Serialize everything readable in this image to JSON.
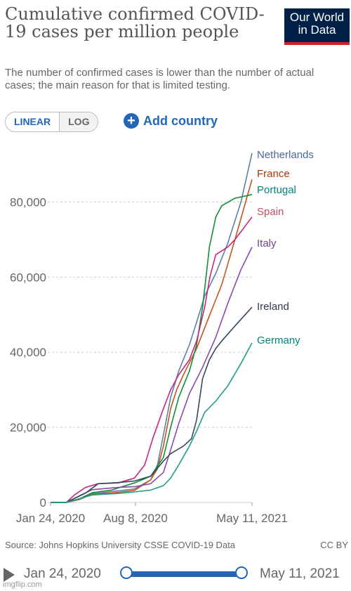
{
  "header": {
    "title": "Cumulative confirmed COVID-19 cases per million people",
    "subtitle": "The number of confirmed cases is lower than the number of actual cases; the main reason for that is limited testing.",
    "logo_line1": "Our World",
    "logo_line2": "in Data"
  },
  "controls": {
    "linear_label": "LINEAR",
    "log_label": "LOG",
    "add_country_label": "Add country"
  },
  "footer": {
    "source": "Source: Johns Hopkins University CSSE COVID-19 Data",
    "license": "CC BY"
  },
  "timeline": {
    "start_label": "Jan 24, 2020",
    "end_label": "May 11, 2021"
  },
  "watermark": "imgflip.com",
  "chart_data": {
    "type": "line",
    "x_start": "2020-01-24",
    "x_end": "2021-05-11",
    "x_ticks": [
      "Jan 24, 2020",
      "Aug 8, 2020",
      "May 11, 2021"
    ],
    "y_ticks": [
      "0",
      "20,000",
      "40,000",
      "60,000",
      "80,000"
    ],
    "y_tick_values": [
      0,
      20000,
      40000,
      60000,
      80000
    ],
    "ylim": [
      0,
      93000
    ],
    "grid": "horizontal dashed",
    "series": [
      {
        "name": "Netherlands",
        "color": "#4c6a9c",
        "points": [
          [
            "2020-01-24",
            0
          ],
          [
            "2020-03-01",
            0
          ],
          [
            "2020-04-01",
            800
          ],
          [
            "2020-05-01",
            2300
          ],
          [
            "2020-06-15",
            2900
          ],
          [
            "2020-08-08",
            3600
          ],
          [
            "2020-09-15",
            6000
          ],
          [
            "2020-10-01",
            10000
          ],
          [
            "2020-10-15",
            18000
          ],
          [
            "2020-11-01",
            28000
          ],
          [
            "2020-11-20",
            35000
          ],
          [
            "2020-12-15",
            42000
          ],
          [
            "2021-01-01",
            48000
          ],
          [
            "2021-01-20",
            55000
          ],
          [
            "2021-02-15",
            61000
          ],
          [
            "2021-03-15",
            69000
          ],
          [
            "2021-04-15",
            80000
          ],
          [
            "2021-05-11",
            93000
          ]
        ]
      },
      {
        "name": "France",
        "color": "#c15065",
        "points": [
          [
            "2020-01-24",
            0
          ],
          [
            "2020-03-01",
            0
          ],
          [
            "2020-04-01",
            800
          ],
          [
            "2020-05-01",
            2200
          ],
          [
            "2020-06-15",
            2500
          ],
          [
            "2020-08-08",
            3200
          ],
          [
            "2020-09-15",
            6000
          ],
          [
            "2020-10-01",
            9000
          ],
          [
            "2020-10-15",
            15000
          ],
          [
            "2020-11-01",
            25000
          ],
          [
            "2020-11-15",
            30000
          ],
          [
            "2020-12-01",
            34000
          ],
          [
            "2021-01-01",
            41000
          ],
          [
            "2021-02-01",
            50000
          ],
          [
            "2021-03-01",
            58000
          ],
          [
            "2021-04-01",
            70000
          ],
          [
            "2021-05-11",
            86000
          ]
        ]
      },
      {
        "name": "Portugal",
        "color": "#00847e",
        "points": [
          [
            "2020-01-24",
            0
          ],
          [
            "2020-03-01",
            0
          ],
          [
            "2020-04-01",
            1000
          ],
          [
            "2020-05-01",
            2600
          ],
          [
            "2020-06-15",
            3300
          ],
          [
            "2020-08-08",
            5200
          ],
          [
            "2020-09-15",
            7000
          ],
          [
            "2020-10-15",
            12000
          ],
          [
            "2020-11-01",
            20000
          ],
          [
            "2020-11-20",
            28000
          ],
          [
            "2020-12-15",
            35000
          ],
          [
            "2021-01-01",
            42000
          ],
          [
            "2021-01-15",
            52000
          ],
          [
            "2021-01-31",
            68000
          ],
          [
            "2021-02-15",
            76000
          ],
          [
            "2021-03-01",
            79000
          ],
          [
            "2021-04-01",
            81000
          ],
          [
            "2021-05-11",
            82000
          ]
        ]
      },
      {
        "name": "Spain",
        "color": "#b13507",
        "points": [
          [
            "2020-01-24",
            0
          ],
          [
            "2020-03-01",
            0
          ],
          [
            "2020-03-20",
            2000
          ],
          [
            "2020-04-15",
            4000
          ],
          [
            "2020-05-15",
            5000
          ],
          [
            "2020-07-01",
            5200
          ],
          [
            "2020-08-08",
            6500
          ],
          [
            "2020-09-01",
            10000
          ],
          [
            "2020-09-20",
            17000
          ],
          [
            "2020-10-15",
            25000
          ],
          [
            "2020-11-01",
            30000
          ],
          [
            "2020-11-20",
            34000
          ],
          [
            "2020-12-15",
            38000
          ],
          [
            "2021-01-01",
            43000
          ],
          [
            "2021-01-20",
            52000
          ],
          [
            "2021-02-01",
            60000
          ],
          [
            "2021-02-15",
            66000
          ],
          [
            "2021-03-01",
            67000
          ],
          [
            "2021-03-15",
            68000
          ],
          [
            "2021-04-01",
            70000
          ],
          [
            "2021-05-11",
            76000
          ]
        ]
      },
      {
        "name": "Italy",
        "color": "#6d3e91",
        "points": [
          [
            "2020-01-24",
            0
          ],
          [
            "2020-03-01",
            0
          ],
          [
            "2020-04-01",
            1800
          ],
          [
            "2020-05-01",
            3400
          ],
          [
            "2020-07-01",
            4000
          ],
          [
            "2020-08-08",
            4200
          ],
          [
            "2020-09-15",
            5000
          ],
          [
            "2020-10-15",
            8000
          ],
          [
            "2020-11-01",
            14000
          ],
          [
            "2020-11-20",
            21000
          ],
          [
            "2020-12-15",
            29000
          ],
          [
            "2021-01-15",
            36000
          ],
          [
            "2021-02-15",
            44000
          ],
          [
            "2021-03-15",
            53000
          ],
          [
            "2021-04-15",
            62000
          ],
          [
            "2021-05-11",
            68000
          ]
        ]
      },
      {
        "name": "Ireland",
        "color": "#38aaba",
        "points": [
          [
            "2020-01-24",
            0
          ],
          [
            "2020-03-01",
            0
          ],
          [
            "2020-04-15",
            2500
          ],
          [
            "2020-05-15",
            5000
          ],
          [
            "2020-07-01",
            5300
          ],
          [
            "2020-08-08",
            5700
          ],
          [
            "2020-09-15",
            7000
          ],
          [
            "2020-10-15",
            11000
          ],
          [
            "2020-11-01",
            13000
          ],
          [
            "2020-12-01",
            15000
          ],
          [
            "2020-12-20",
            17000
          ],
          [
            "2021-01-01",
            22000
          ],
          [
            "2021-01-15",
            33000
          ],
          [
            "2021-01-31",
            38000
          ],
          [
            "2021-02-15",
            41000
          ],
          [
            "2021-03-01",
            43000
          ],
          [
            "2021-04-01",
            47000
          ],
          [
            "2021-05-11",
            52000
          ]
        ]
      },
      {
        "name": "Germany",
        "color": "#286bbb",
        "points": [
          [
            "2020-01-24",
            0
          ],
          [
            "2020-03-01",
            0
          ],
          [
            "2020-04-01",
            1000
          ],
          [
            "2020-05-01",
            2000
          ],
          [
            "2020-07-01",
            2400
          ],
          [
            "2020-08-08",
            2800
          ],
          [
            "2020-09-15",
            3300
          ],
          [
            "2020-10-15",
            4500
          ],
          [
            "2020-11-01",
            6500
          ],
          [
            "2020-11-20",
            10000
          ],
          [
            "2020-12-15",
            15000
          ],
          [
            "2021-01-01",
            19000
          ],
          [
            "2021-01-20",
            24000
          ],
          [
            "2021-02-15",
            27000
          ],
          [
            "2021-03-15",
            31000
          ],
          [
            "2021-04-15",
            37000
          ],
          [
            "2021-05-11",
            42500
          ]
        ]
      }
    ]
  }
}
